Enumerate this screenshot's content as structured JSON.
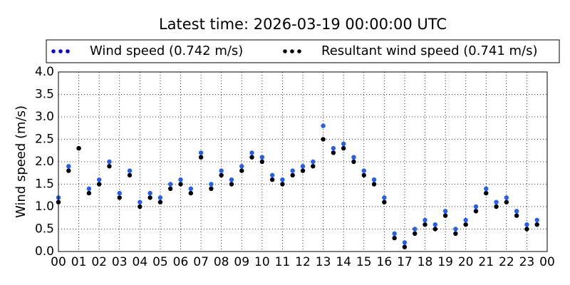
{
  "chart_data": {
    "type": "scatter",
    "title": "Latest time: 2026-03-19 00:00:00 UTC",
    "ylabel": "Wind speed (m/s)",
    "xlim": [
      0,
      24
    ],
    "ylim": [
      0,
      4
    ],
    "xticks": [
      {
        "value": 0,
        "label": "00"
      },
      {
        "value": 1,
        "label": "01"
      },
      {
        "value": 2,
        "label": "02"
      },
      {
        "value": 3,
        "label": "03"
      },
      {
        "value": 4,
        "label": "04"
      },
      {
        "value": 5,
        "label": "05"
      },
      {
        "value": 6,
        "label": "06"
      },
      {
        "value": 7,
        "label": "07"
      },
      {
        "value": 8,
        "label": "08"
      },
      {
        "value": 9,
        "label": "09"
      },
      {
        "value": 10,
        "label": "10"
      },
      {
        "value": 11,
        "label": "11"
      },
      {
        "value": 12,
        "label": "12"
      },
      {
        "value": 13,
        "label": "13"
      },
      {
        "value": 14,
        "label": "14"
      },
      {
        "value": 15,
        "label": "15"
      },
      {
        "value": 16,
        "label": "16"
      },
      {
        "value": 17,
        "label": "17"
      },
      {
        "value": 18,
        "label": "18"
      },
      {
        "value": 19,
        "label": "19"
      },
      {
        "value": 20,
        "label": "20"
      },
      {
        "value": 21,
        "label": "21"
      },
      {
        "value": 22,
        "label": "22"
      },
      {
        "value": 23,
        "label": "23"
      },
      {
        "value": 24,
        "label": "00"
      }
    ],
    "yticks": [
      {
        "value": 0,
        "label": "0.0"
      },
      0.5,
      {
        "value": 1,
        "label": "1.0"
      },
      1.5,
      {
        "value": 2,
        "label": "2.0"
      },
      2.5,
      {
        "value": 3,
        "label": "3.0"
      },
      3.5,
      {
        "value": 4,
        "label": "4.0"
      }
    ],
    "grid": true,
    "x": [
      0,
      0.5,
      1,
      1.5,
      2,
      2.5,
      3,
      3.5,
      4,
      4.5,
      5,
      5.5,
      6,
      6.5,
      7,
      7.5,
      8,
      8.5,
      9,
      9.5,
      10,
      10.5,
      11,
      11.5,
      12,
      12.5,
      13,
      13.5,
      14,
      14.5,
      15,
      15.5,
      16,
      16.5,
      17,
      17.5,
      18,
      18.5,
      19,
      19.5,
      20,
      20.5,
      21,
      21.5,
      22,
      22.5,
      23,
      23.5
    ],
    "series": [
      {
        "name": "Wind speed (0.742 m/s)",
        "color": "#1f5fff",
        "values": [
          1.2,
          1.9,
          2.3,
          1.4,
          1.6,
          2.0,
          1.3,
          1.8,
          1.1,
          1.3,
          1.2,
          1.5,
          1.6,
          1.4,
          2.2,
          1.5,
          1.8,
          1.6,
          1.9,
          2.2,
          2.1,
          1.7,
          1.6,
          1.8,
          1.9,
          2.0,
          2.8,
          2.3,
          2.4,
          2.1,
          1.8,
          1.6,
          1.2,
          0.4,
          0.2,
          0.5,
          0.7,
          0.6,
          0.9,
          0.5,
          0.7,
          1.0,
          1.4,
          1.1,
          1.2,
          0.9,
          0.6,
          0.7
        ]
      },
      {
        "name": "Resultant wind speed (0.741 m/s)",
        "color": "#000000",
        "values": [
          1.1,
          1.8,
          2.3,
          1.3,
          1.5,
          1.9,
          1.2,
          1.7,
          1.0,
          1.2,
          1.1,
          1.4,
          1.5,
          1.3,
          2.1,
          1.4,
          1.7,
          1.5,
          1.8,
          2.1,
          2.0,
          1.6,
          1.5,
          1.7,
          1.8,
          1.9,
          2.5,
          2.2,
          2.3,
          2.0,
          1.7,
          1.5,
          1.1,
          0.3,
          0.1,
          0.4,
          0.6,
          0.5,
          0.8,
          0.4,
          0.6,
          0.9,
          1.3,
          1.0,
          1.1,
          0.8,
          0.5,
          0.6
        ]
      }
    ]
  }
}
